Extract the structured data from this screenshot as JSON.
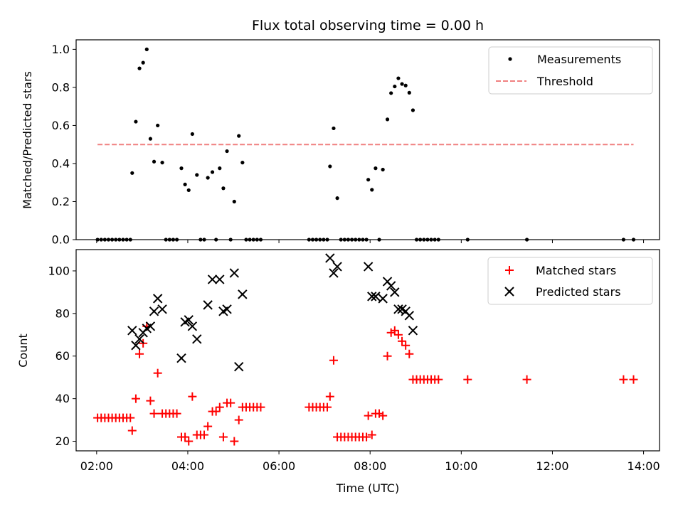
{
  "chart_data": [
    {
      "type": "scatter",
      "title": "Flux total observing time = 0.00 h",
      "xlabel": "",
      "ylabel": "Matched/Predicted stars",
      "xlim": [
        1.55,
        14.35
      ],
      "ylim": [
        0,
        1.05
      ],
      "yticks": [
        0.0,
        0.2,
        0.4,
        0.6,
        0.8,
        1.0
      ],
      "ytick_labels": [
        "0.0",
        "0.2",
        "0.4",
        "0.6",
        "0.8",
        "1.0"
      ],
      "legend_position": "top-right",
      "series": [
        {
          "name": "Measurements",
          "marker": "dot",
          "color": "#000000",
          "points": [
            [
              2.02,
              0
            ],
            [
              2.1,
              0
            ],
            [
              2.18,
              0
            ],
            [
              2.26,
              0
            ],
            [
              2.34,
              0
            ],
            [
              2.42,
              0
            ],
            [
              2.5,
              0
            ],
            [
              2.58,
              0
            ],
            [
              2.66,
              0
            ],
            [
              2.74,
              0
            ],
            [
              2.78,
              0.35
            ],
            [
              2.86,
              0.62
            ],
            [
              2.94,
              0.9
            ],
            [
              3.02,
              0.93
            ],
            [
              3.1,
              1.0
            ],
            [
              3.18,
              0.53
            ],
            [
              3.26,
              0.41
            ],
            [
              3.34,
              0.6
            ],
            [
              3.44,
              0.405
            ],
            [
              3.52,
              0
            ],
            [
              3.6,
              0
            ],
            [
              3.68,
              0
            ],
            [
              3.76,
              0
            ],
            [
              3.86,
              0.375
            ],
            [
              3.94,
              0.29
            ],
            [
              4.02,
              0.26
            ],
            [
              4.1,
              0.555
            ],
            [
              4.2,
              0.34
            ],
            [
              4.28,
              0
            ],
            [
              4.36,
              0
            ],
            [
              4.44,
              0.325
            ],
            [
              4.54,
              0.355
            ],
            [
              4.62,
              0
            ],
            [
              4.7,
              0.375
            ],
            [
              4.78,
              0.27
            ],
            [
              4.86,
              0.465
            ],
            [
              4.94,
              0
            ],
            [
              5.02,
              0.2
            ],
            [
              5.12,
              0.545
            ],
            [
              5.2,
              0.405
            ],
            [
              5.28,
              0
            ],
            [
              5.36,
              0
            ],
            [
              5.44,
              0
            ],
            [
              5.52,
              0
            ],
            [
              5.6,
              0
            ],
            [
              6.66,
              0
            ],
            [
              6.74,
              0
            ],
            [
              6.82,
              0
            ],
            [
              6.9,
              0
            ],
            [
              6.98,
              0
            ],
            [
              7.06,
              0
            ],
            [
              7.12,
              0.385
            ],
            [
              7.2,
              0.585
            ],
            [
              7.28,
              0.218
            ],
            [
              7.36,
              0
            ],
            [
              7.44,
              0
            ],
            [
              7.52,
              0
            ],
            [
              7.6,
              0
            ],
            [
              7.68,
              0
            ],
            [
              7.76,
              0
            ],
            [
              7.84,
              0
            ],
            [
              7.92,
              0
            ],
            [
              7.96,
              0.315
            ],
            [
              8.04,
              0.262
            ],
            [
              8.12,
              0.375
            ],
            [
              8.2,
              0
            ],
            [
              8.28,
              0.368
            ],
            [
              8.38,
              0.632
            ],
            [
              8.46,
              0.77
            ],
            [
              8.54,
              0.805
            ],
            [
              8.62,
              0.848
            ],
            [
              8.7,
              0.818
            ],
            [
              8.78,
              0.81
            ],
            [
              8.86,
              0.772
            ],
            [
              8.94,
              0.68
            ],
            [
              9.02,
              0
            ],
            [
              9.1,
              0
            ],
            [
              9.18,
              0
            ],
            [
              9.26,
              0
            ],
            [
              9.34,
              0
            ],
            [
              9.42,
              0
            ],
            [
              9.5,
              0
            ],
            [
              10.14,
              0
            ],
            [
              11.44,
              0
            ],
            [
              13.56,
              0
            ],
            [
              13.78,
              0
            ]
          ]
        },
        {
          "name": "Threshold",
          "marker": "dashed-line",
          "color": "#f08080",
          "x": [
            2.02,
            13.78
          ],
          "y": [
            0.5,
            0.5
          ]
        }
      ]
    },
    {
      "type": "scatter",
      "title": "",
      "xlabel": "Time (UTC)",
      "ylabel": "Count",
      "xlim": [
        1.55,
        14.35
      ],
      "ylim": [
        15.5,
        110
      ],
      "xticks": [
        2,
        4,
        6,
        8,
        10,
        12,
        14
      ],
      "xtick_labels": [
        "02:00",
        "04:00",
        "06:00",
        "08:00",
        "10:00",
        "12:00",
        "14:00"
      ],
      "yticks": [
        20,
        40,
        60,
        80,
        100
      ],
      "ytick_labels": [
        "20",
        "40",
        "60",
        "80",
        "100"
      ],
      "legend_position": "top-right",
      "series": [
        {
          "name": "Matched stars",
          "marker": "plus",
          "color": "#ff0000",
          "points": [
            [
              2.02,
              31
            ],
            [
              2.1,
              31
            ],
            [
              2.18,
              31
            ],
            [
              2.26,
              31
            ],
            [
              2.34,
              31
            ],
            [
              2.42,
              31
            ],
            [
              2.5,
              31
            ],
            [
              2.58,
              31
            ],
            [
              2.66,
              31
            ],
            [
              2.74,
              31
            ],
            [
              2.78,
              25
            ],
            [
              2.86,
              40
            ],
            [
              2.94,
              61
            ],
            [
              3.02,
              66
            ],
            [
              3.1,
              74
            ],
            [
              3.18,
              39
            ],
            [
              3.26,
              33
            ],
            [
              3.34,
              52
            ],
            [
              3.44,
              33
            ],
            [
              3.52,
              33
            ],
            [
              3.6,
              33
            ],
            [
              3.68,
              33
            ],
            [
              3.76,
              33
            ],
            [
              3.86,
              22
            ],
            [
              3.94,
              22
            ],
            [
              4.02,
              20
            ],
            [
              4.1,
              41
            ],
            [
              4.2,
              23
            ],
            [
              4.28,
              23
            ],
            [
              4.36,
              23
            ],
            [
              4.44,
              27
            ],
            [
              4.54,
              34
            ],
            [
              4.62,
              34
            ],
            [
              4.7,
              36
            ],
            [
              4.78,
              22
            ],
            [
              4.86,
              38
            ],
            [
              4.94,
              38
            ],
            [
              5.02,
              20
            ],
            [
              5.12,
              30
            ],
            [
              5.2,
              36
            ],
            [
              5.28,
              36
            ],
            [
              5.36,
              36
            ],
            [
              5.44,
              36
            ],
            [
              5.52,
              36
            ],
            [
              5.6,
              36
            ],
            [
              6.66,
              36
            ],
            [
              6.74,
              36
            ],
            [
              6.82,
              36
            ],
            [
              6.9,
              36
            ],
            [
              6.98,
              36
            ],
            [
              7.06,
              36
            ],
            [
              7.12,
              41
            ],
            [
              7.2,
              58
            ],
            [
              7.28,
              22
            ],
            [
              7.36,
              22
            ],
            [
              7.44,
              22
            ],
            [
              7.52,
              22
            ],
            [
              7.6,
              22
            ],
            [
              7.68,
              22
            ],
            [
              7.76,
              22
            ],
            [
              7.84,
              22
            ],
            [
              7.92,
              22
            ],
            [
              7.96,
              32
            ],
            [
              8.04,
              23
            ],
            [
              8.12,
              33
            ],
            [
              8.2,
              33
            ],
            [
              8.28,
              32
            ],
            [
              8.38,
              60
            ],
            [
              8.46,
              71
            ],
            [
              8.54,
              72
            ],
            [
              8.62,
              70
            ],
            [
              8.7,
              67
            ],
            [
              8.78,
              65
            ],
            [
              8.86,
              61
            ],
            [
              8.94,
              49
            ],
            [
              9.02,
              49
            ],
            [
              9.1,
              49
            ],
            [
              9.18,
              49
            ],
            [
              9.26,
              49
            ],
            [
              9.34,
              49
            ],
            [
              9.42,
              49
            ],
            [
              9.5,
              49
            ],
            [
              10.14,
              49
            ],
            [
              11.44,
              49
            ],
            [
              13.56,
              49
            ],
            [
              13.78,
              49
            ]
          ]
        },
        {
          "name": "Predicted stars",
          "marker": "x",
          "color": "#000000",
          "points": [
            [
              2.78,
              72
            ],
            [
              2.86,
              65
            ],
            [
              2.94,
              68
            ],
            [
              3.02,
              71
            ],
            [
              3.1,
              73
            ],
            [
              3.18,
              74
            ],
            [
              3.26,
              81
            ],
            [
              3.34,
              87
            ],
            [
              3.44,
              82
            ],
            [
              3.86,
              59
            ],
            [
              3.94,
              76
            ],
            [
              4.02,
              77
            ],
            [
              4.1,
              74
            ],
            [
              4.2,
              68
            ],
            [
              4.44,
              84
            ],
            [
              4.54,
              96
            ],
            [
              4.7,
              96
            ],
            [
              4.78,
              81
            ],
            [
              4.86,
              82
            ],
            [
              5.02,
              99
            ],
            [
              5.12,
              55
            ],
            [
              5.2,
              89
            ],
            [
              7.12,
              106
            ],
            [
              7.2,
              99
            ],
            [
              7.28,
              102
            ],
            [
              7.96,
              102
            ],
            [
              8.04,
              88
            ],
            [
              8.12,
              88
            ],
            [
              8.28,
              87
            ],
            [
              8.38,
              95
            ],
            [
              8.46,
              93
            ],
            [
              8.54,
              90
            ],
            [
              8.62,
              82
            ],
            [
              8.7,
              82
            ],
            [
              8.78,
              81
            ],
            [
              8.86,
              79
            ],
            [
              8.94,
              72
            ]
          ]
        }
      ]
    }
  ]
}
